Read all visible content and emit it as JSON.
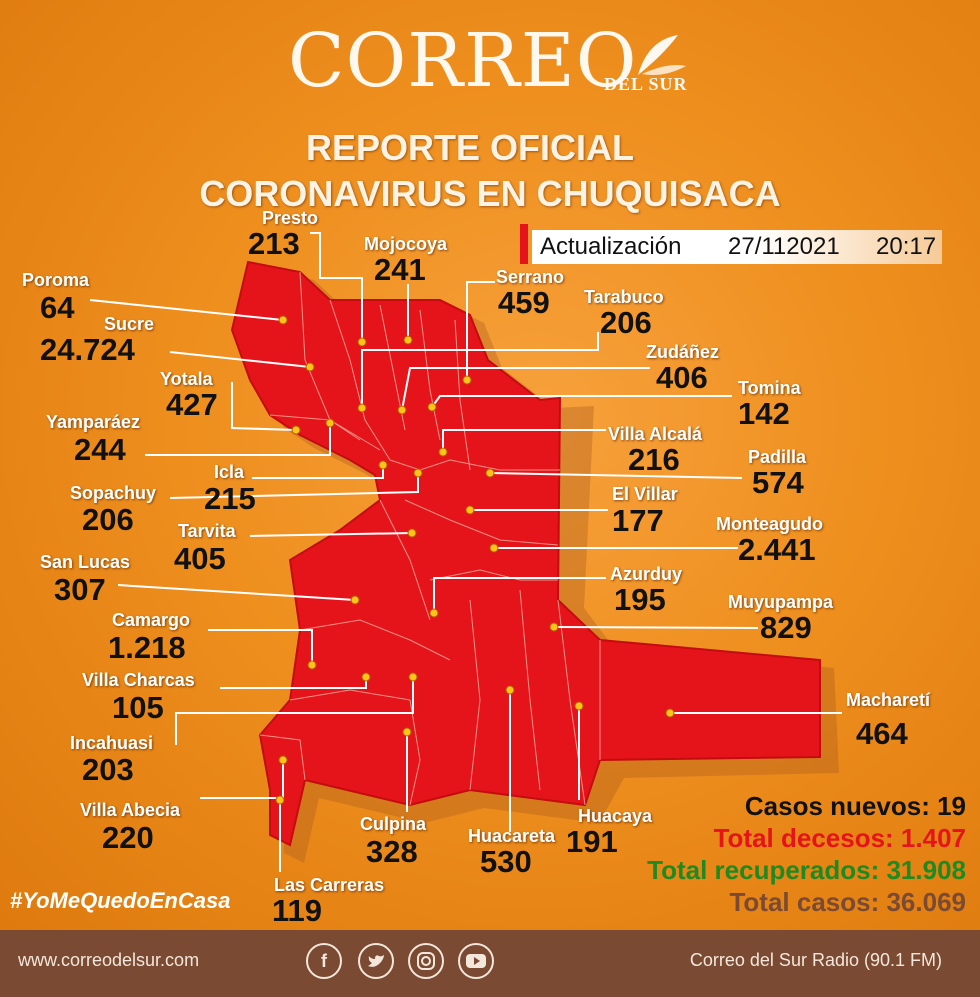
{
  "header": {
    "logo_main": "CORREO",
    "logo_sub": "DEL SUR",
    "title_line1": "REPORTE OFICIAL",
    "title_line2": "CORONAVIRUS EN CHUQUISACA",
    "update_label": "Actualización",
    "update_date": "27/112021",
    "update_time": "20:17"
  },
  "municipalities": [
    {
      "name": "Presto",
      "cases": "213"
    },
    {
      "name": "Mojocoya",
      "cases": "241"
    },
    {
      "name": "Serrano",
      "cases": "459"
    },
    {
      "name": "Poroma",
      "cases": "64"
    },
    {
      "name": "Tarabuco",
      "cases": "206"
    },
    {
      "name": "Sucre",
      "cases": "24.724"
    },
    {
      "name": "Zudáñez",
      "cases": "406"
    },
    {
      "name": "Yotala",
      "cases": "427"
    },
    {
      "name": "Tomina",
      "cases": "142"
    },
    {
      "name": "Yamparáez",
      "cases": "244"
    },
    {
      "name": "Villa Alcalá",
      "cases": "216"
    },
    {
      "name": "Padilla",
      "cases": "574"
    },
    {
      "name": "Icla",
      "cases": "215"
    },
    {
      "name": "Sopachuy",
      "cases": "206"
    },
    {
      "name": "El Villar",
      "cases": "177"
    },
    {
      "name": "Tarvita",
      "cases": "405"
    },
    {
      "name": "Monteagudo",
      "cases": "2.441"
    },
    {
      "name": "San Lucas",
      "cases": "307"
    },
    {
      "name": "Azurduy",
      "cases": "195"
    },
    {
      "name": "Camargo",
      "cases": "1.218"
    },
    {
      "name": "Muyupampa",
      "cases": "829"
    },
    {
      "name": "Villa Charcas",
      "cases": "105"
    },
    {
      "name": "Macharetí",
      "cases": "464"
    },
    {
      "name": "Incahuasi",
      "cases": "203"
    },
    {
      "name": "Villa Abecia",
      "cases": "220"
    },
    {
      "name": "Culpina",
      "cases": "328"
    },
    {
      "name": "Huacareta",
      "cases": "530"
    },
    {
      "name": "Huacaya",
      "cases": "191"
    },
    {
      "name": "Las Carreras",
      "cases": "119"
    }
  ],
  "stats": {
    "new_cases": "Casos nuevos: 19",
    "deaths": "Total decesos: 1.407",
    "recovered": "Total recuperados: 31.908",
    "total": "Total casos: 36.069"
  },
  "hashtag": "#YoMeQuedoEnCasa",
  "footer": {
    "website": "www.correodelsur.com",
    "radio": "Correo del Sur Radio (90.1 FM)",
    "social_icons": [
      "facebook-icon",
      "twitter-icon",
      "instagram-icon",
      "youtube-icon"
    ]
  },
  "colors": {
    "background": "#ee8f1e",
    "map_fill": "#e5141a",
    "deaths": "#e5141a",
    "recovered": "#1f8a1f",
    "total": "#7a4a32",
    "footer": "#7a4a32"
  }
}
